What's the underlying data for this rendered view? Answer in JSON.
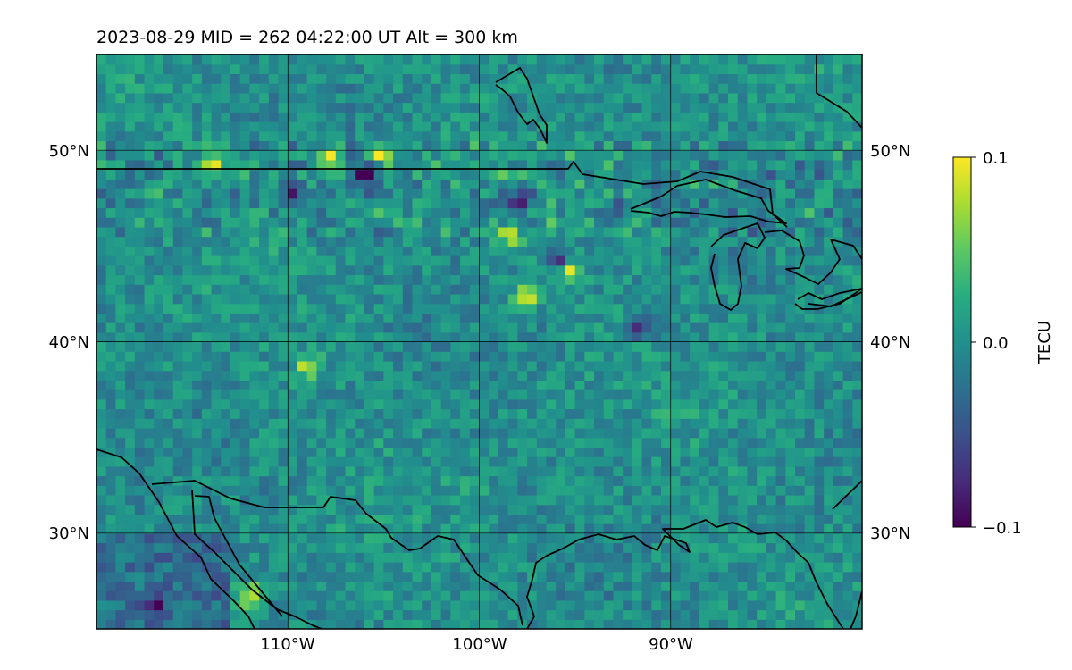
{
  "title": "2023-08-29  MID = 262    04:22:00  UT  Alt = 300 km",
  "map": {
    "projection": "PlateCarree",
    "lon_range": [
      -120,
      -80
    ],
    "lat_range": [
      25,
      55
    ],
    "meridians": [
      -110,
      -100,
      -90
    ],
    "parallels": [
      30,
      40,
      50
    ],
    "lon_tick_labels": [
      "110°W",
      "100°W",
      "90°W"
    ],
    "lat_tick_labels_left": [
      "30°N",
      "40°N",
      "50°N"
    ],
    "lat_tick_labels_right": [
      "30°N",
      "40°N",
      "50°N"
    ],
    "grid": true,
    "coastlines": true,
    "borders": true,
    "field": "TEC perturbation",
    "colormap": "viridis"
  },
  "colorbar": {
    "label": "TECU",
    "vmin": -0.1,
    "vmax": 0.1,
    "tick_labels": [
      "0.1",
      "0.0",
      "−0.1"
    ],
    "ticks": [
      0.1,
      0.0,
      -0.1
    ]
  },
  "chart_data": {
    "type": "heatmap",
    "title": "2023-08-29  MID = 262    04:22:00  UT  Alt = 300 km",
    "xlabel": "",
    "ylabel": "",
    "xlim": [
      -120,
      -80
    ],
    "ylim": [
      25,
      55
    ],
    "colorbar_label": "TECU",
    "vmin": -0.1,
    "vmax": 0.1,
    "grid": true,
    "hotspots": [
      {
        "lon": -112.2,
        "lat": 26.5,
        "value": 0.1
      },
      {
        "lon": -97.8,
        "lat": 42.2,
        "value": 0.1
      },
      {
        "lon": -109.2,
        "lat": 38.5,
        "value": 0.08
      },
      {
        "lon": -105.5,
        "lat": 49.5,
        "value": 0.1
      },
      {
        "lon": -114.3,
        "lat": 49.0,
        "value": 0.1
      },
      {
        "lon": -95.5,
        "lat": 43.5,
        "value": 0.1
      },
      {
        "lon": -98.5,
        "lat": 45.2,
        "value": 0.1
      },
      {
        "lon": -108.0,
        "lat": 49.2,
        "value": 0.09
      },
      {
        "lon": -106.2,
        "lat": 48.6,
        "value": -0.1
      },
      {
        "lon": -117.2,
        "lat": 26.0,
        "value": -0.1
      },
      {
        "lon": -96.0,
        "lat": 44.0,
        "value": -0.09
      },
      {
        "lon": -98.2,
        "lat": 47.2,
        "value": -0.09
      },
      {
        "lon": -110.0,
        "lat": 47.5,
        "value": -0.08
      },
      {
        "lon": -92.0,
        "lat": 40.5,
        "value": -0.08
      }
    ]
  }
}
